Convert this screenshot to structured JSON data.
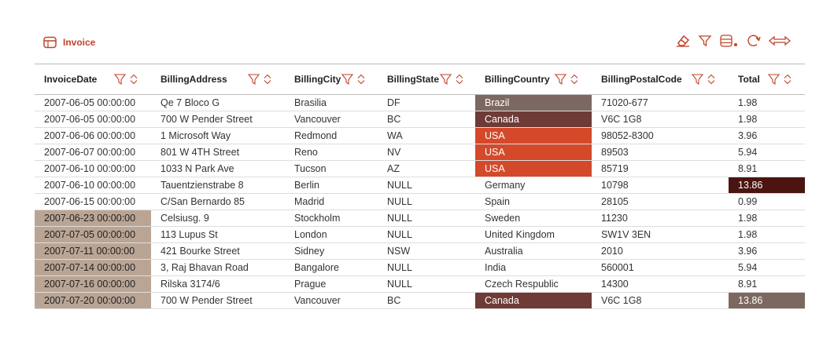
{
  "header": {
    "title": "Invoice"
  },
  "table": {
    "columns": [
      "InvoiceDate",
      "BillingAddress",
      "BillingCity",
      "BillingState",
      "BillingCountry",
      "BillingPostalCode",
      "Total"
    ],
    "rows": [
      [
        "2007-06-05 00:00:00",
        "Qe 7 Bloco G",
        "Brasilia",
        "DF",
        "Brazil",
        "71020-677",
        "1.98"
      ],
      [
        "2007-06-05 00:00:00",
        "700 W Pender Street",
        "Vancouver",
        "BC",
        "Canada",
        "V6C 1G8",
        "1.98"
      ],
      [
        "2007-06-06 00:00:00",
        "1 Microsoft Way",
        "Redmond",
        "WA",
        "USA",
        "98052-8300",
        "3.96"
      ],
      [
        "2007-06-07 00:00:00",
        "801 W 4TH Street",
        "Reno",
        "NV",
        "USA",
        "89503",
        "5.94"
      ],
      [
        "2007-06-10 00:00:00",
        "1033 N Park Ave",
        "Tucson",
        "AZ",
        "USA",
        "85719",
        "8.91"
      ],
      [
        "2007-06-10 00:00:00",
        "Tauentzienstrabe 8",
        "Berlin",
        "NULL",
        "Germany",
        "10798",
        "13.86"
      ],
      [
        "2007-06-15 00:00:00",
        "C/San Bernardo 85",
        "Madrid",
        "NULL",
        "Spain",
        "28105",
        "0.99"
      ],
      [
        "2007-06-23 00:00:00",
        "Celsiusg. 9",
        "Stockholm",
        "NULL",
        "Sweden",
        "11230",
        "1.98"
      ],
      [
        "2007-07-05 00:00:00",
        "113 Lupus St",
        "London",
        "NULL",
        "United Kingdom",
        "SW1V 3EN",
        "1.98"
      ],
      [
        "2007-07-11 00:00:00",
        "421 Bourke Street",
        "Sidney",
        "NSW",
        "Australia",
        "2010",
        "3.96"
      ],
      [
        "2007-07-14 00:00:00",
        "3, Raj Bhavan Road",
        "Bangalore",
        "NULL",
        "India",
        "560001",
        "5.94"
      ],
      [
        "2007-07-16 00:00:00",
        "Rilska 3174/6",
        "Prague",
        "NULL",
        "Czech Respublic",
        "14300",
        "8.91"
      ],
      [
        "2007-07-20 00:00:00",
        "700 W Pender Street",
        "Vancouver",
        "BC",
        "Canada",
        "V6C 1G8",
        "13.86"
      ]
    ]
  }
}
